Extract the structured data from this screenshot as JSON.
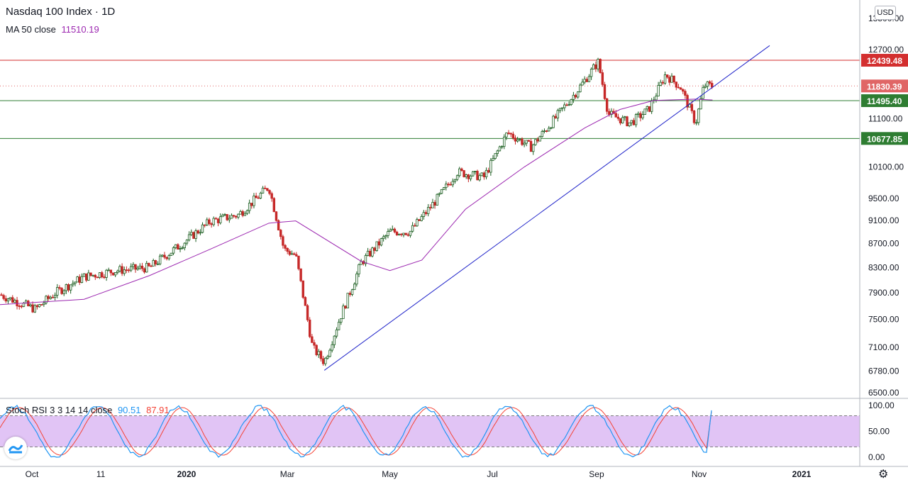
{
  "header": {
    "title": "Nasdaq 100 Index · 1D",
    "ma_label": "MA 50 close",
    "ma_value": "11510.19",
    "stoch_label": "Stoch RSI 3 3 14 14 close",
    "stoch_k": "90.51",
    "stoch_d": "87.91",
    "currency": "USD"
  },
  "colors": {
    "up": "#26a69a",
    "candle_up_body": "#ffffff",
    "candle_up_border": "#1b5e20",
    "candle_down": "#c62828",
    "ma": "#9c27b0",
    "trendline": "#1e22c9",
    "resistance": "#d32f2f",
    "support": "#2e7d32",
    "stoch_k": "#2196f3",
    "stoch_d": "#f44336",
    "stoch_band": "#e1c4f5"
  },
  "chart_data": [
    {
      "type": "candlestick",
      "title": "Nasdaq 100 Index · 1D",
      "y_axis_ticks": [
        13500.0,
        12700.0,
        11100.0,
        10100.0,
        9500.0,
        9100.0,
        8700.0,
        8300.0,
        7900.0,
        7500.0,
        7100.0,
        6780.0,
        6500.0
      ],
      "x_axis_ticks": [
        "Oct",
        "11",
        "2020",
        "Mar",
        "May",
        "Jul",
        "Sep",
        "Nov",
        "2021"
      ],
      "price_labels": [
        {
          "value": "12439.48",
          "role": "resistance"
        },
        {
          "value": "11830.39",
          "role": "last-price"
        },
        {
          "value": "11495.40",
          "role": "support"
        },
        {
          "value": "10677.85",
          "role": "support"
        }
      ],
      "close_path": [
        [
          "2019-09-12",
          7870
        ],
        [
          "2019-10-03",
          7650
        ],
        [
          "2019-10-15",
          7900
        ],
        [
          "2019-11-01",
          8150
        ],
        [
          "2019-11-20",
          8250
        ],
        [
          "2019-12-10",
          8300
        ],
        [
          "2019-12-31",
          8730
        ],
        [
          "2020-01-15",
          9080
        ],
        [
          "2020-02-01",
          9200
        ],
        [
          "2020-02-19",
          9720
        ],
        [
          "2020-02-28",
          8600
        ],
        [
          "2020-03-06",
          8500
        ],
        [
          "2020-03-16",
          7100
        ],
        [
          "2020-03-23",
          6900
        ],
        [
          "2020-04-01",
          7500
        ],
        [
          "2020-04-14",
          8380
        ],
        [
          "2020-05-01",
          8900
        ],
        [
          "2020-05-13",
          8900
        ],
        [
          "2020-06-01",
          9600
        ],
        [
          "2020-06-10",
          10000
        ],
        [
          "2020-06-26",
          9900
        ],
        [
          "2020-07-10",
          10800
        ],
        [
          "2020-07-24",
          10500
        ],
        [
          "2020-08-05",
          11000
        ],
        [
          "2020-08-20",
          11700
        ],
        [
          "2020-09-02",
          12400
        ],
        [
          "2020-09-08",
          11200
        ],
        [
          "2020-09-21",
          11000
        ],
        [
          "2020-10-02",
          11300
        ],
        [
          "2020-10-12",
          12100
        ],
        [
          "2020-10-21",
          11800
        ],
        [
          "2020-10-30",
          11000
        ],
        [
          "2020-11-04",
          11850
        ],
        [
          "2020-11-09",
          11830
        ]
      ],
      "ma50_path": [
        [
          "2019-09-12",
          7720
        ],
        [
          "2019-11-01",
          7800
        ],
        [
          "2019-12-10",
          8170
        ],
        [
          "2020-01-15",
          8600
        ],
        [
          "2020-02-19",
          9050
        ],
        [
          "2020-03-06",
          9090
        ],
        [
          "2020-04-14",
          8400
        ],
        [
          "2020-05-01",
          8250
        ],
        [
          "2020-05-20",
          8420
        ],
        [
          "2020-06-15",
          9300
        ],
        [
          "2020-07-20",
          10100
        ],
        [
          "2020-08-25",
          10900
        ],
        [
          "2020-09-15",
          11300
        ],
        [
          "2020-10-05",
          11500
        ],
        [
          "2020-10-30",
          11530
        ],
        [
          "2020-11-09",
          11510
        ]
      ],
      "trendline": [
        [
          "2020-03-23",
          6790
        ],
        [
          "2020-12-13",
          12800
        ]
      ],
      "horizontal_lines": [
        {
          "value": 12439.48,
          "style": "solid",
          "color": "#d32f2f"
        },
        {
          "value": 11830.39,
          "style": "dotted",
          "color": "#e06666"
        },
        {
          "value": 11495.4,
          "style": "solid",
          "color": "#2e7d32"
        },
        {
          "value": 10677.85,
          "style": "solid",
          "color": "#2e7d32"
        }
      ]
    },
    {
      "type": "line",
      "title": "Stoch RSI 3 3 14 14 close",
      "y_axis_ticks": [
        100.0,
        50.0,
        0.0
      ],
      "band": [
        20,
        80
      ],
      "series": [
        {
          "name": "K",
          "last": 90.51
        },
        {
          "name": "D",
          "last": 87.91
        }
      ]
    }
  ]
}
